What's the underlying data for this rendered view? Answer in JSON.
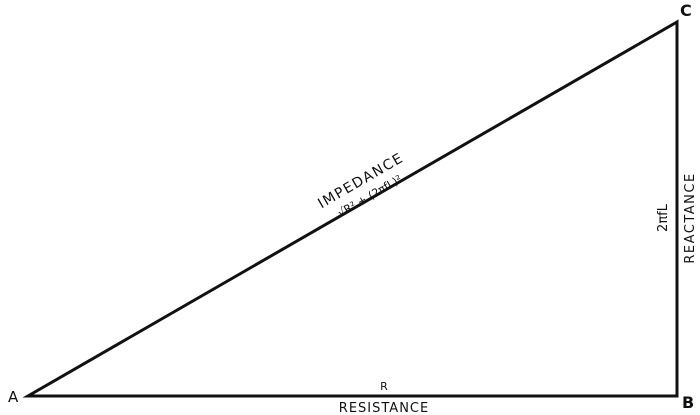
{
  "vertices": {
    "a": "A",
    "b": "B",
    "c": "C"
  },
  "hypotenuse": {
    "label": "IMPEDANCE",
    "formula": "√R² + (2πfL)²"
  },
  "base": {
    "symbol": "R",
    "label": "RESISTANCE"
  },
  "side": {
    "symbol": "2πfL",
    "label": "REACTANCE"
  },
  "colors": {
    "line": "#111111",
    "background": "#ffffff"
  }
}
